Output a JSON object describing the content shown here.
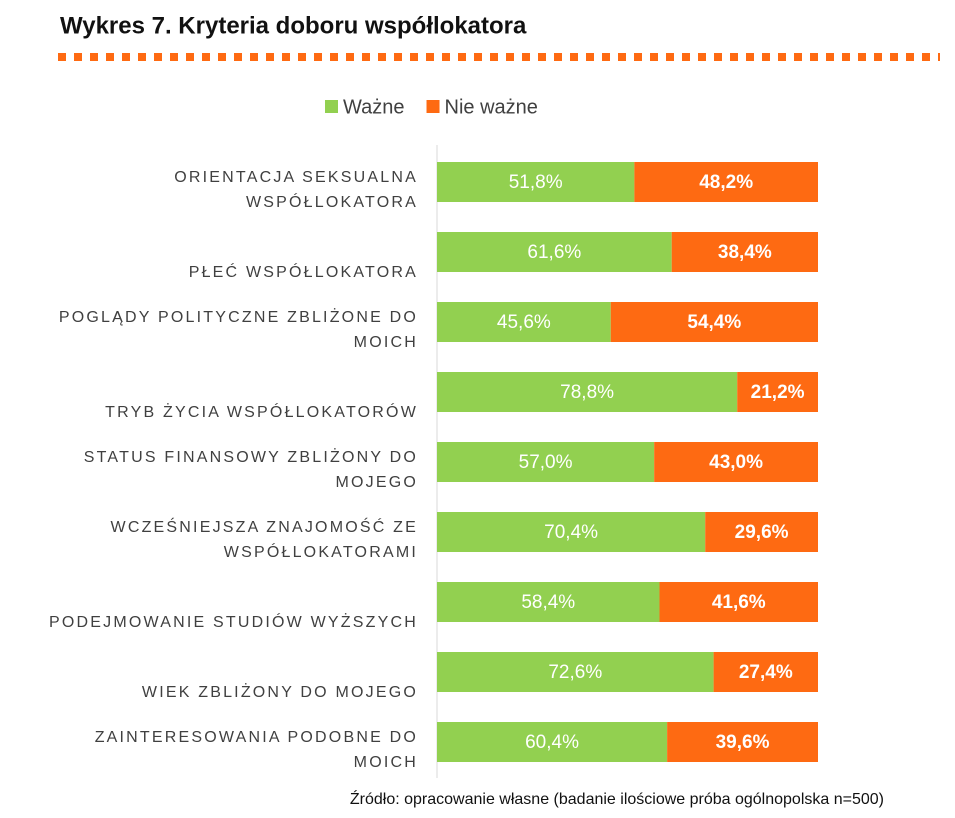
{
  "chart_data": {
    "type": "stacked_barh",
    "title": "Wykres 7. Kryteria doboru współlokatora",
    "categories": [
      "ORIENTACJA SEKSUALNA WSPÓŁLOKATORA",
      "PŁEĆ WSPÓŁLOKATORA",
      "POGLĄDY POLITYCZNE ZBLIŻONE DO MOICH",
      "TRYB ŻYCIA WSPÓŁLOKATORÓW",
      "STATUS FINANSOWY ZBLIŻONY DO MOJEGO",
      "WCZEŚNIEJSZA ZNAJOMOŚĆ ZE WSPÓŁLOKATORAMI",
      "PODEJMOWANIE STUDIÓW WYŻSZYCH",
      "WIEK ZBLIŻONY DO MOJEGO",
      "ZAINTERESOWANIA PODOBNE DO MOICH"
    ],
    "series": [
      {
        "name": "Ważne",
        "color": "#92d050",
        "values": [
          51.8,
          61.6,
          45.6,
          78.8,
          57.0,
          70.4,
          58.4,
          72.6,
          60.4
        ],
        "value_labels": [
          "51,8%",
          "61,6%",
          "45,6%",
          "78,8%",
          "57,0%",
          "70,4%",
          "58,4%",
          "72,6%",
          "60,4%"
        ]
      },
      {
        "name": "Nie ważne",
        "color": "#fe6a12",
        "values": [
          48.2,
          38.4,
          54.4,
          21.2,
          43.0,
          29.6,
          41.6,
          27.4,
          39.6
        ],
        "value_labels": [
          "48,2%",
          "38,4%",
          "54,4%",
          "21,2%",
          "43,0%",
          "29,6%",
          "41,6%",
          "27,4%",
          "39,6%"
        ]
      }
    ],
    "xlim": [
      0,
      100
    ],
    "legend": "top",
    "source": "Źródło: opracowanie własne (badanie ilościowe próba ogólnopolska n=500)"
  }
}
